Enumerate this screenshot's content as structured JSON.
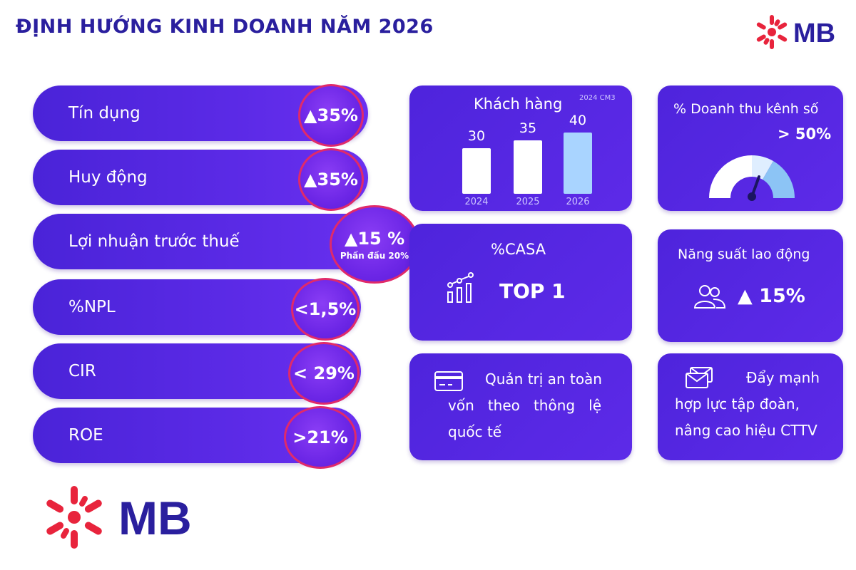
{
  "title": "ĐỊNH HƯỚNG KINH DOANH NĂM 2026",
  "brand": {
    "name": "MB",
    "color_primary": "#2a1f9e",
    "color_accent": "#e8243c"
  },
  "targets": [
    {
      "label": "Tín dụng",
      "value": "▲35%"
    },
    {
      "label": "Huy động",
      "value": "▲35%"
    },
    {
      "label": "Lợi nhuận trước thuế",
      "value": "▲15 %",
      "note": "Phấn đấu 20%"
    },
    {
      "label": "%NPL",
      "value": "<1,5%"
    },
    {
      "label": "CIR",
      "value": "< 29%"
    },
    {
      "label": "ROE",
      "value": ">21%"
    }
  ],
  "customers": {
    "title": "Khách hàng",
    "unit": "2024 CM3",
    "categories": [
      "2024",
      "2025",
      "2026"
    ],
    "values": [
      30,
      35,
      40
    ],
    "highlight_index": 2
  },
  "digital_revenue": {
    "title": "% Doanh thu kênh số",
    "value": "> 50%",
    "icon": "gauge-icon"
  },
  "casa": {
    "title": "%CASA",
    "value": "TOP 1",
    "icon": "growth-chart-icon"
  },
  "productivity": {
    "title": "Năng suất lao động",
    "value": "▲ 15%",
    "icon": "users-icon"
  },
  "capital": {
    "text": "Quản trị an toàn vốn theo thông lệ quốc tế",
    "line1": "Quản trị an toàn",
    "line2": "vốn   theo   thông   lệ",
    "line3": "quốc tế",
    "icon": "card-icon"
  },
  "synergy": {
    "line1": "Đẩy mạnh",
    "line2": "hợp lực tập đoàn,",
    "line3": "nâng cao hiệu CTTV",
    "icon": "mail-icon"
  }
}
